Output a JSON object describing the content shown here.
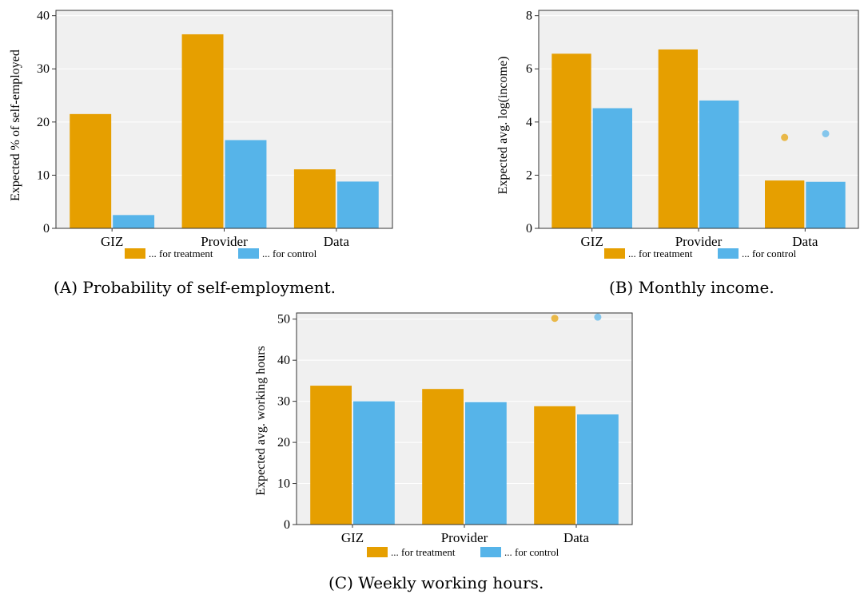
{
  "colors": {
    "treatment": "#E69F00",
    "control": "#56B4E9",
    "panel_bg": "#F0F0F0"
  },
  "legend": {
    "treatment": "... for treatment",
    "control": "... for control"
  },
  "chart_data": [
    {
      "type": "bar",
      "caption": "(A) Probability of self-employment.",
      "ylabel": "Expected % of self-employed",
      "categories": [
        "GIZ",
        "Provider",
        "Data"
      ],
      "ylim": [
        0,
        41
      ],
      "yticks": [
        0,
        10,
        20,
        30,
        40
      ],
      "series": [
        {
          "name": "... for treatment",
          "values": [
            21.5,
            36.5,
            11.1
          ]
        },
        {
          "name": "... for control",
          "values": [
            2.5,
            16.6,
            8.8
          ]
        }
      ],
      "points": []
    },
    {
      "type": "bar",
      "caption": "(B) Monthly income.",
      "ylabel": "Expected avg. log(income)",
      "categories": [
        "GIZ",
        "Provider",
        "Data"
      ],
      "ylim": [
        0,
        8.2
      ],
      "yticks": [
        0,
        2,
        4,
        6,
        8
      ],
      "series": [
        {
          "name": "... for treatment",
          "values": [
            6.57,
            6.73,
            1.8
          ]
        },
        {
          "name": "... for control",
          "values": [
            4.52,
            4.81,
            1.75
          ]
        }
      ],
      "points": [
        {
          "category": "Data",
          "series": "treatment",
          "value": 3.42
        },
        {
          "category": "Data",
          "series": "control",
          "value": 3.56
        }
      ]
    },
    {
      "type": "bar",
      "caption": "(C) Weekly working hours.",
      "ylabel": "Expected avg. working hours",
      "categories": [
        "GIZ",
        "Provider",
        "Data"
      ],
      "ylim": [
        0,
        51.5
      ],
      "yticks": [
        0,
        10,
        20,
        30,
        40,
        50
      ],
      "series": [
        {
          "name": "... for treatment",
          "values": [
            33.8,
            33.0,
            28.8
          ]
        },
        {
          "name": "... for control",
          "values": [
            30.0,
            29.8,
            26.8
          ]
        }
      ],
      "points": [
        {
          "category": "Data",
          "series": "treatment",
          "value": 50.2
        },
        {
          "category": "Data",
          "series": "control",
          "value": 50.5
        }
      ]
    }
  ]
}
